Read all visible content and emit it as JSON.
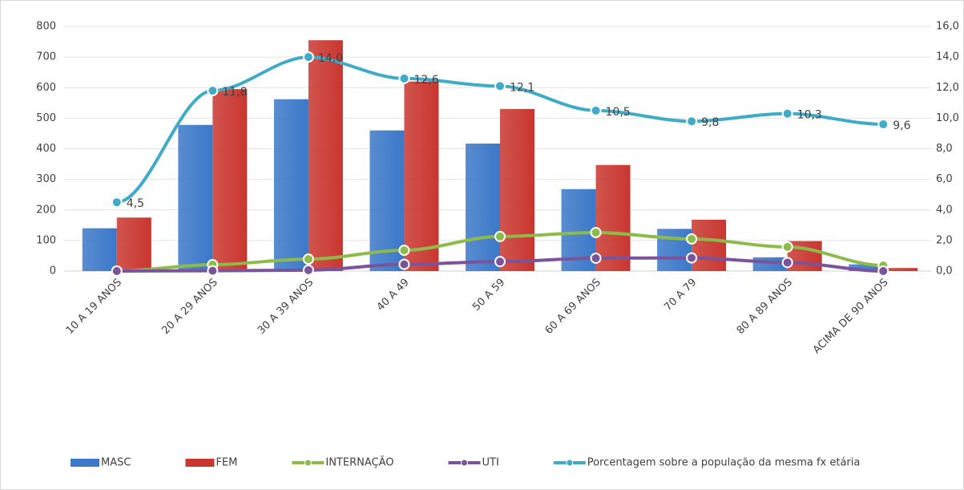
{
  "chart_data": {
    "type": "bar",
    "categories": [
      "10 A 19 ANOS",
      "20 A 29 ANOS",
      "30 A 39 ANOS",
      "40 A 49",
      "50 A 59",
      "60 A 69 ANOS",
      "70 A 79",
      "80 A 89 ANOS",
      "ACIMA DE 90 ANOS"
    ],
    "series": [
      {
        "name": "MASC",
        "type": "bar",
        "color": "#3b78c8",
        "values": [
          140,
          478,
          562,
          460,
          417,
          268,
          138,
          45,
          22
        ]
      },
      {
        "name": "FEM",
        "type": "bar",
        "color": "#c9362f",
        "values": [
          175,
          595,
          755,
          620,
          530,
          347,
          168,
          98,
          10
        ]
      },
      {
        "name": "INTERNAÇÃO",
        "type": "line",
        "color": "#8dbb4a",
        "values": [
          0,
          21,
          39,
          68,
          113,
          126,
          105,
          79,
          18
        ]
      },
      {
        "name": "UTI",
        "type": "line",
        "color": "#7a539a",
        "values": [
          0,
          1,
          3,
          22,
          31,
          42,
          43,
          28,
          0
        ]
      },
      {
        "name": "Porcentagem sobre a população da mesma fx etária",
        "type": "line",
        "axis": "y2",
        "color": "#3fabc6",
        "values": [
          4.5,
          11.8,
          14.0,
          12.6,
          12.1,
          10.5,
          9.8,
          10.3,
          9.6
        ],
        "value_labels": [
          "4,5",
          "11,8",
          "14,0",
          "12,6",
          "12,1",
          "10,5",
          "9,8",
          "10,3",
          "9,6"
        ]
      }
    ],
    "ylim": [
      0,
      800
    ],
    "yticks": [
      0,
      100,
      200,
      300,
      400,
      500,
      600,
      700,
      800
    ],
    "y2lim": [
      0,
      16
    ],
    "y2ticks": [
      {
        "value": 0,
        "label": "0,0"
      },
      {
        "value": 2,
        "label": "2,0"
      },
      {
        "value": 4,
        "label": "4,0"
      },
      {
        "value": 6,
        "label": "6,0"
      },
      {
        "value": 8,
        "label": "8,0"
      },
      {
        "value": 10,
        "label": "10,0"
      },
      {
        "value": 12,
        "label": "12,0"
      },
      {
        "value": 14,
        "label": "14,0"
      },
      {
        "value": 16,
        "label": "16,0"
      }
    ],
    "grid": true,
    "legend": "bottom"
  }
}
